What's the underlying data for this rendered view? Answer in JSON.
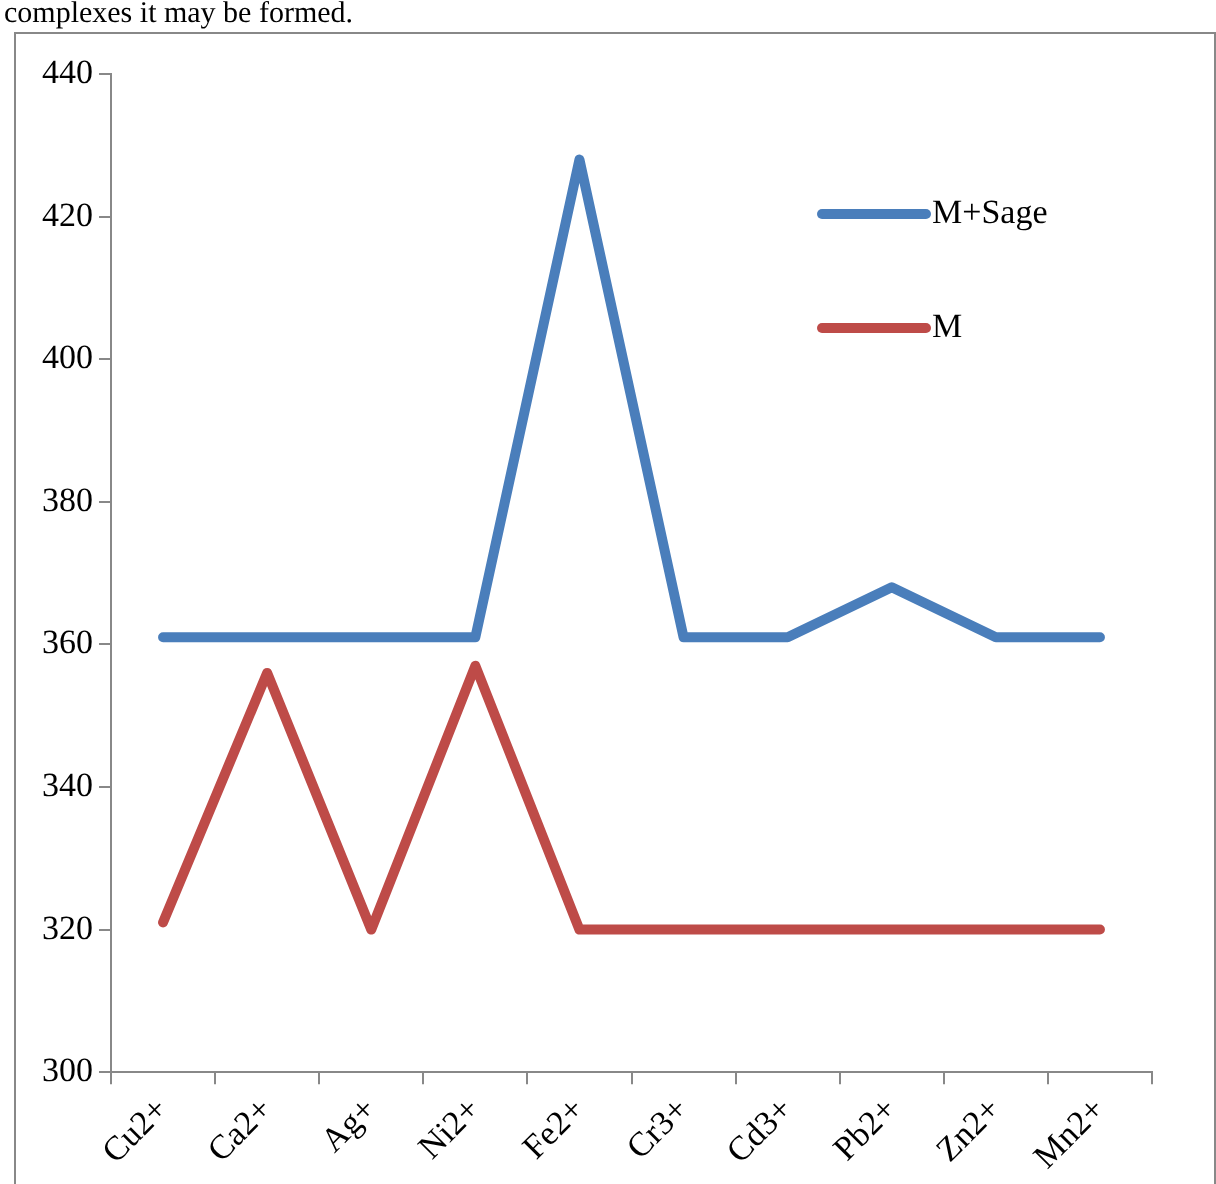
{
  "chart_data": {
    "type": "line",
    "annotations": [
      "complexes it may be formed."
    ],
    "categories": [
      "Cu2+",
      "Ca2+",
      "Ag+",
      "Ni2+",
      "Fe2+",
      "Cr3+",
      "Cd3+",
      "Pb2+",
      "Zn2+",
      "Mn2+"
    ],
    "series": [
      {
        "name": "M+Sage",
        "color": "#4a7ebb",
        "values": [
          361,
          361,
          361,
          361,
          428,
          361,
          361,
          368,
          361,
          361
        ]
      },
      {
        "name": "M",
        "color": "#be4b48",
        "values": [
          321,
          356,
          320,
          357,
          320,
          320,
          320,
          320,
          320,
          320
        ]
      }
    ],
    "ylim": [
      300,
      440
    ],
    "yticks": [
      300,
      320,
      340,
      360,
      380,
      400,
      420,
      440
    ],
    "grid": false,
    "legend": "top right",
    "marker": "none",
    "line_style": "solid"
  }
}
